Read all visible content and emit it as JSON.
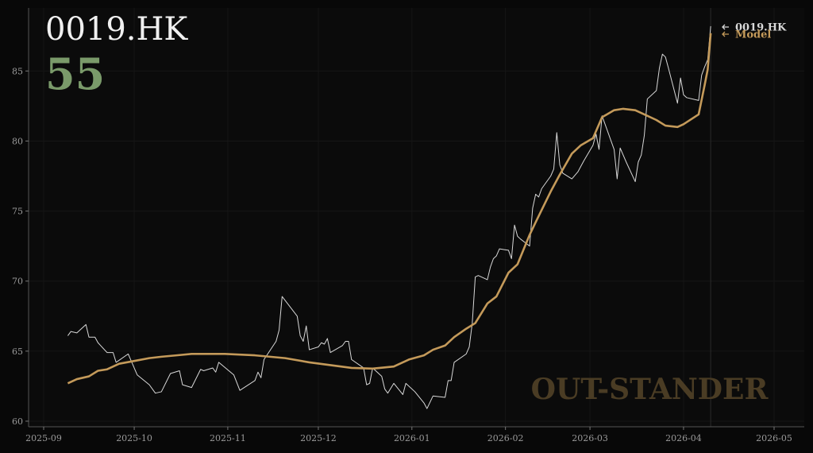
{
  "chart_data": {
    "type": "line",
    "title": "0019.HK",
    "score": 55,
    "watermark": "OUT-STANDER",
    "grid": true,
    "xlim": [
      "2025-08-27",
      "2026-05-11"
    ],
    "xticks": [
      {
        "value": "2025-09-01",
        "label": "2025-09"
      },
      {
        "value": "2025-10-01",
        "label": "2025-10"
      },
      {
        "value": "2025-11-01",
        "label": "2025-11"
      },
      {
        "value": "2025-12-01",
        "label": "2025-12"
      },
      {
        "value": "2026-01-01",
        "label": "2026-01"
      },
      {
        "value": "2026-02-01",
        "label": "2026-02"
      },
      {
        "value": "2026-03-01",
        "label": "2026-03"
      },
      {
        "value": "2026-04-01",
        "label": "2026-04"
      },
      {
        "value": "2026-05-01",
        "label": "2026-05"
      }
    ],
    "ylim": [
      59.6,
      89.5
    ],
    "yticks": [
      60,
      65,
      70,
      75,
      80,
      85
    ],
    "series": [
      {
        "name": "0019.HK",
        "color": "#d8d8d8",
        "x": [
          "2025-09-09",
          "2025-09-10",
          "2025-09-12",
          "2025-09-15",
          "2025-09-16",
          "2025-09-18",
          "2025-09-19",
          "2025-09-22",
          "2025-09-24",
          "2025-09-25",
          "2025-09-29",
          "2025-10-02",
          "2025-10-06",
          "2025-10-08",
          "2025-10-10",
          "2025-10-13",
          "2025-10-16",
          "2025-10-17",
          "2025-10-20",
          "2025-10-23",
          "2025-10-24",
          "2025-10-27",
          "2025-10-28",
          "2025-10-29",
          "2025-11-03",
          "2025-11-05",
          "2025-11-10",
          "2025-11-11",
          "2025-11-12",
          "2025-11-13",
          "2025-11-17",
          "2025-11-18",
          "2025-11-19",
          "2025-11-24",
          "2025-11-25",
          "2025-11-26",
          "2025-11-27",
          "2025-11-28",
          "2025-12-01",
          "2025-12-02",
          "2025-12-03",
          "2025-12-04",
          "2025-12-05",
          "2025-12-09",
          "2025-12-10",
          "2025-12-11",
          "2025-12-12",
          "2025-12-16",
          "2025-12-17",
          "2025-12-18",
          "2025-12-19",
          "2025-12-22",
          "2025-12-23",
          "2025-12-24",
          "2025-12-26",
          "2025-12-29",
          "2025-12-30",
          "2026-01-02",
          "2026-01-05",
          "2026-01-06",
          "2026-01-08",
          "2026-01-12",
          "2026-01-13",
          "2026-01-14",
          "2026-01-15",
          "2026-01-19",
          "2026-01-20",
          "2026-01-21",
          "2026-01-22",
          "2026-01-23",
          "2026-01-26",
          "2026-01-27",
          "2026-01-28",
          "2026-01-29",
          "2026-01-30",
          "2026-02-02",
          "2026-02-03",
          "2026-02-04",
          "2026-02-05",
          "2026-02-06",
          "2026-02-09",
          "2026-02-10",
          "2026-02-11",
          "2026-02-12",
          "2026-02-13",
          "2026-02-16",
          "2026-02-17",
          "2026-02-18",
          "2026-02-19",
          "2026-02-20",
          "2026-02-23",
          "2026-02-25",
          "2026-02-26",
          "2026-02-27",
          "2026-03-02",
          "2026-03-03",
          "2026-03-04",
          "2026-03-05",
          "2026-03-06",
          "2026-03-09",
          "2026-03-10",
          "2026-03-11",
          "2026-03-12",
          "2026-03-13",
          "2026-03-16",
          "2026-03-17",
          "2026-03-18",
          "2026-03-19",
          "2026-03-20",
          "2026-03-23",
          "2026-03-24",
          "2026-03-25",
          "2026-03-26",
          "2026-03-27",
          "2026-03-30",
          "2026-03-31",
          "2026-04-01",
          "2026-04-02",
          "2026-04-06",
          "2026-04-07",
          "2026-04-08",
          "2026-04-09",
          "2026-04-10"
        ],
        "values": [
          66.1,
          66.4,
          66.3,
          66.9,
          66.0,
          66.0,
          65.6,
          64.9,
          64.9,
          64.2,
          64.8,
          63.3,
          62.6,
          62.0,
          62.1,
          63.4,
          63.6,
          62.6,
          62.4,
          63.7,
          63.6,
          63.8,
          63.5,
          64.2,
          63.3,
          62.2,
          62.9,
          63.5,
          63.1,
          64.4,
          65.7,
          66.5,
          68.9,
          67.5,
          66.1,
          65.7,
          66.8,
          65.1,
          65.3,
          65.6,
          65.5,
          65.9,
          64.9,
          65.4,
          65.7,
          65.7,
          64.4,
          63.8,
          62.6,
          62.7,
          63.8,
          63.2,
          62.3,
          62.0,
          62.7,
          61.9,
          62.7,
          62.1,
          61.3,
          60.9,
          61.8,
          61.7,
          62.9,
          62.9,
          64.2,
          64.8,
          65.3,
          67.0,
          70.3,
          70.4,
          70.1,
          71.0,
          71.6,
          71.8,
          72.3,
          72.2,
          71.6,
          74.0,
          73.2,
          73.0,
          72.5,
          75.2,
          76.2,
          76.0,
          76.6,
          77.5,
          78.0,
          80.6,
          78.3,
          77.7,
          77.3,
          77.8,
          78.2,
          78.6,
          79.7,
          80.5,
          79.4,
          81.8,
          81.2,
          79.4,
          77.3,
          79.5,
          79.0,
          78.5,
          77.1,
          78.5,
          79.0,
          80.4,
          83.0,
          83.6,
          85.2,
          86.2,
          86.0,
          85.2,
          82.7,
          84.5,
          83.3,
          83.1,
          82.9,
          84.7,
          85.3,
          85.8,
          88.2
        ]
      },
      {
        "name": "Model",
        "color": "#c49a5a",
        "x": [
          "2025-09-09",
          "2025-09-12",
          "2025-09-16",
          "2025-09-19",
          "2025-09-22",
          "2025-09-26",
          "2025-10-01",
          "2025-10-06",
          "2025-10-10",
          "2025-10-15",
          "2025-10-20",
          "2025-10-31",
          "2025-11-10",
          "2025-11-20",
          "2025-11-28",
          "2025-12-05",
          "2025-12-12",
          "2025-12-19",
          "2025-12-26",
          "2025-12-31",
          "2026-01-05",
          "2026-01-08",
          "2026-01-12",
          "2026-01-15",
          "2026-01-19",
          "2026-01-22",
          "2026-01-26",
          "2026-01-29",
          "2026-02-02",
          "2026-02-05",
          "2026-02-09",
          "2026-02-11",
          "2026-02-16",
          "2026-02-19",
          "2026-02-23",
          "2026-02-26",
          "2026-03-02",
          "2026-03-05",
          "2026-03-09",
          "2026-03-12",
          "2026-03-16",
          "2026-03-19",
          "2026-03-23",
          "2026-03-26",
          "2026-03-30",
          "2026-04-01",
          "2026-04-06",
          "2026-04-08",
          "2026-04-09",
          "2026-04-10"
        ],
        "values": [
          62.7,
          63.0,
          63.2,
          63.6,
          63.7,
          64.1,
          64.3,
          64.5,
          64.6,
          64.7,
          64.8,
          64.8,
          64.7,
          64.5,
          64.2,
          64.0,
          63.8,
          63.75,
          63.9,
          64.4,
          64.7,
          65.1,
          65.4,
          66.0,
          66.6,
          67.0,
          68.4,
          68.9,
          70.6,
          71.2,
          73.3,
          74.2,
          76.4,
          77.6,
          79.1,
          79.7,
          80.2,
          81.7,
          82.2,
          82.3,
          82.2,
          81.9,
          81.5,
          81.1,
          81.0,
          81.2,
          81.9,
          84.0,
          85.1,
          87.7
        ]
      }
    ]
  }
}
